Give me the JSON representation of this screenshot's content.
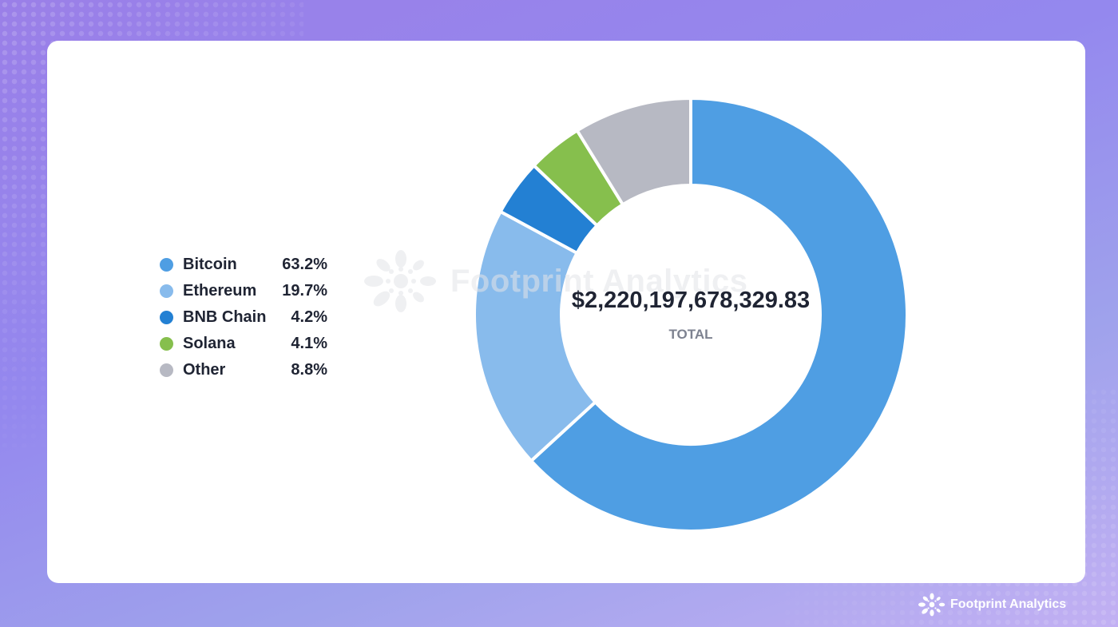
{
  "chart_data": {
    "type": "pie",
    "variant": "donut",
    "title": "",
    "categories": [
      "Bitcoin",
      "Ethereum",
      "BNB Chain",
      "Solana",
      "Other"
    ],
    "values": [
      63.2,
      19.7,
      4.2,
      4.1,
      8.8
    ],
    "unit": "%",
    "colors": [
      "#4f9ee3",
      "#88bbec",
      "#2380d3",
      "#86bf4d",
      "#b7b9c3"
    ],
    "center_value": "$2,220,197,678,329.83",
    "center_label": "TOTAL",
    "legend_position": "left",
    "start_angle_deg": 0,
    "direction": "clockwise"
  },
  "legend": [
    {
      "label": "Bitcoin",
      "value": "63.2%",
      "color": "#4f9ee3"
    },
    {
      "label": "Ethereum",
      "value": "19.7%",
      "color": "#88bbec"
    },
    {
      "label": "BNB Chain",
      "value": "4.2%",
      "color": "#2380d3"
    },
    {
      "label": "Solana",
      "value": "4.1%",
      "color": "#86bf4d"
    },
    {
      "label": "Other",
      "value": "8.8%",
      "color": "#b7b9c3"
    }
  ],
  "center": {
    "total": "$2,220,197,678,329.83",
    "label": "TOTAL"
  },
  "watermark": {
    "text": "Footprint Analytics"
  },
  "brand": {
    "text": "Footprint Analytics"
  }
}
